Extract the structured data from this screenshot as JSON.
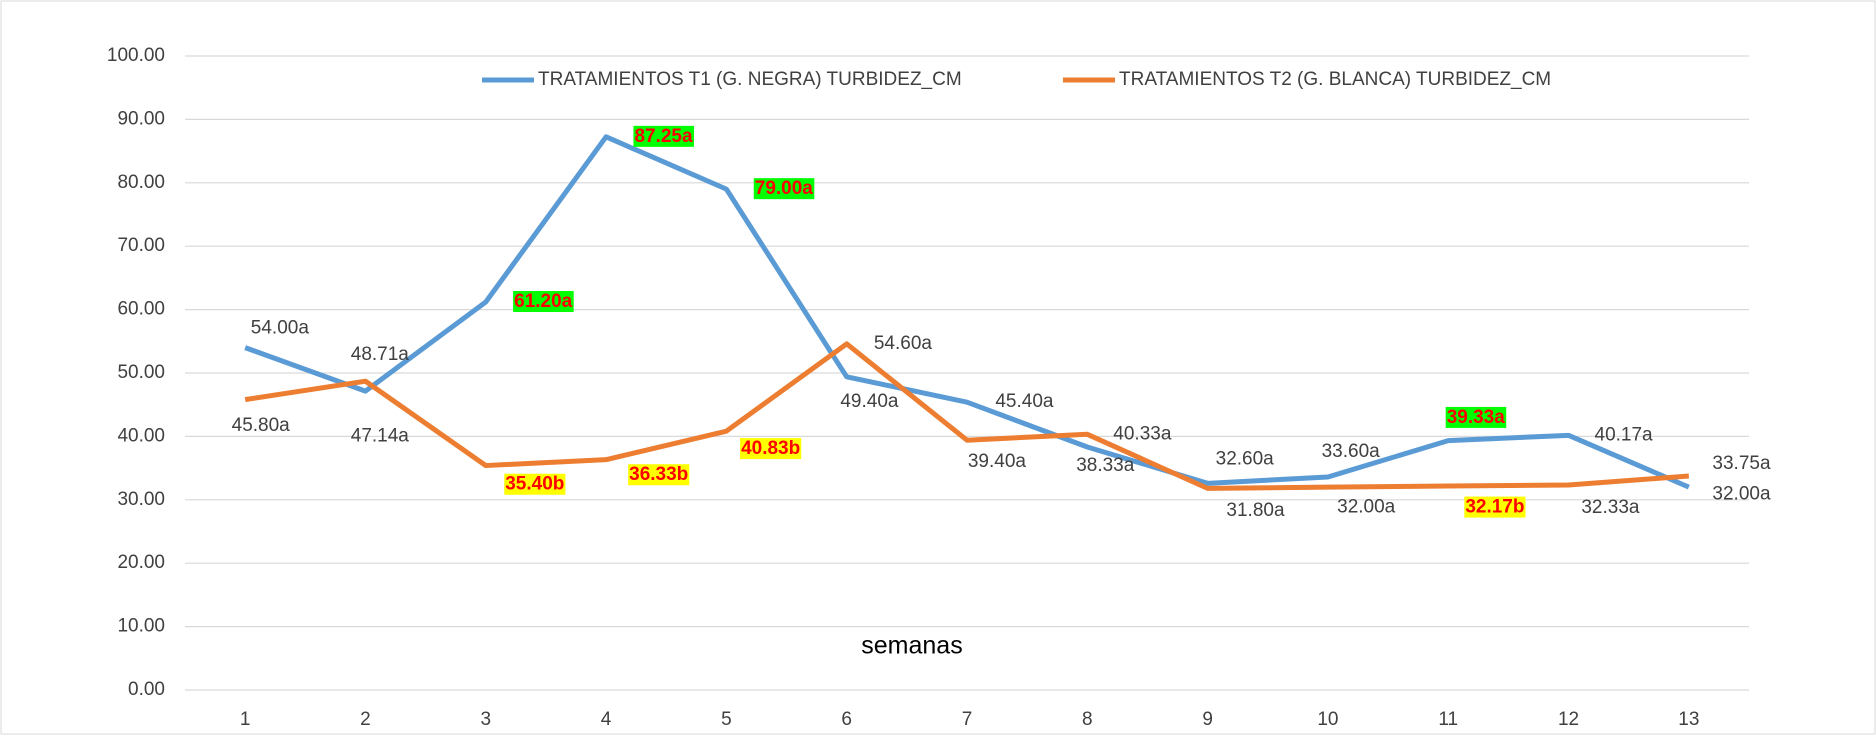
{
  "chart_data": {
    "type": "line",
    "x_label": "semanas",
    "categories": [
      "1",
      "2",
      "3",
      "4",
      "5",
      "6",
      "7",
      "8",
      "9",
      "10",
      "11",
      "12",
      "13"
    ],
    "series": [
      {
        "name": "TRATAMIENTOS T1 (G. NEGRA) TURBIDEZ_CM",
        "color": "#5b9bd5",
        "values": [
          54.0,
          47.14,
          61.2,
          87.25,
          79.0,
          49.4,
          45.4,
          38.33,
          32.6,
          33.6,
          39.33,
          40.17,
          32.0
        ],
        "value_labels": [
          "54.00a",
          "47.14a",
          "61.20a",
          "87.25a",
          "79.00a",
          "49.40a",
          "45.40a",
          "38.33a",
          "32.60a",
          "33.60a",
          "39.33a",
          "40.17a",
          "32.00a"
        ],
        "label_highlight": [
          false,
          false,
          true,
          true,
          true,
          false,
          false,
          false,
          false,
          false,
          true,
          false,
          false
        ],
        "highlight_color": "#00ff00"
      },
      {
        "name": "TRATAMIENTOS T2 (G. BLANCA) TURBIDEZ_CM",
        "color": "#ed7d31",
        "values": [
          45.8,
          48.71,
          35.4,
          36.33,
          40.83,
          54.6,
          39.4,
          40.33,
          31.8,
          32.0,
          32.17,
          32.33,
          33.75
        ],
        "value_labels": [
          "45.80a",
          "48.71a",
          "35.40b",
          "36.33b",
          "40.83b",
          "54.60a",
          "39.40a",
          "40.33a",
          "31.80a",
          "32.00a",
          "32.17b",
          "32.33a",
          "33.75a"
        ],
        "label_highlight": [
          false,
          false,
          true,
          true,
          true,
          false,
          false,
          false,
          false,
          false,
          true,
          false,
          false
        ],
        "highlight_color": "#ffff00"
      }
    ],
    "ylim": [
      0,
      100
    ],
    "yticks": [
      {
        "value": 0,
        "label": "0.00"
      },
      {
        "value": 10,
        "label": "10.00"
      },
      {
        "value": 20,
        "label": "20.00"
      },
      {
        "value": 30,
        "label": "30.00"
      },
      {
        "value": 40,
        "label": "40.00"
      },
      {
        "value": 50,
        "label": "50.00"
      },
      {
        "value": 60,
        "label": "60.00"
      },
      {
        "value": 70,
        "label": "70.00"
      },
      {
        "value": 80,
        "label": "80.00"
      },
      {
        "value": 90,
        "label": "90.00"
      },
      {
        "value": 100,
        "label": "100.00"
      }
    ],
    "grid": true,
    "legend": "top"
  }
}
